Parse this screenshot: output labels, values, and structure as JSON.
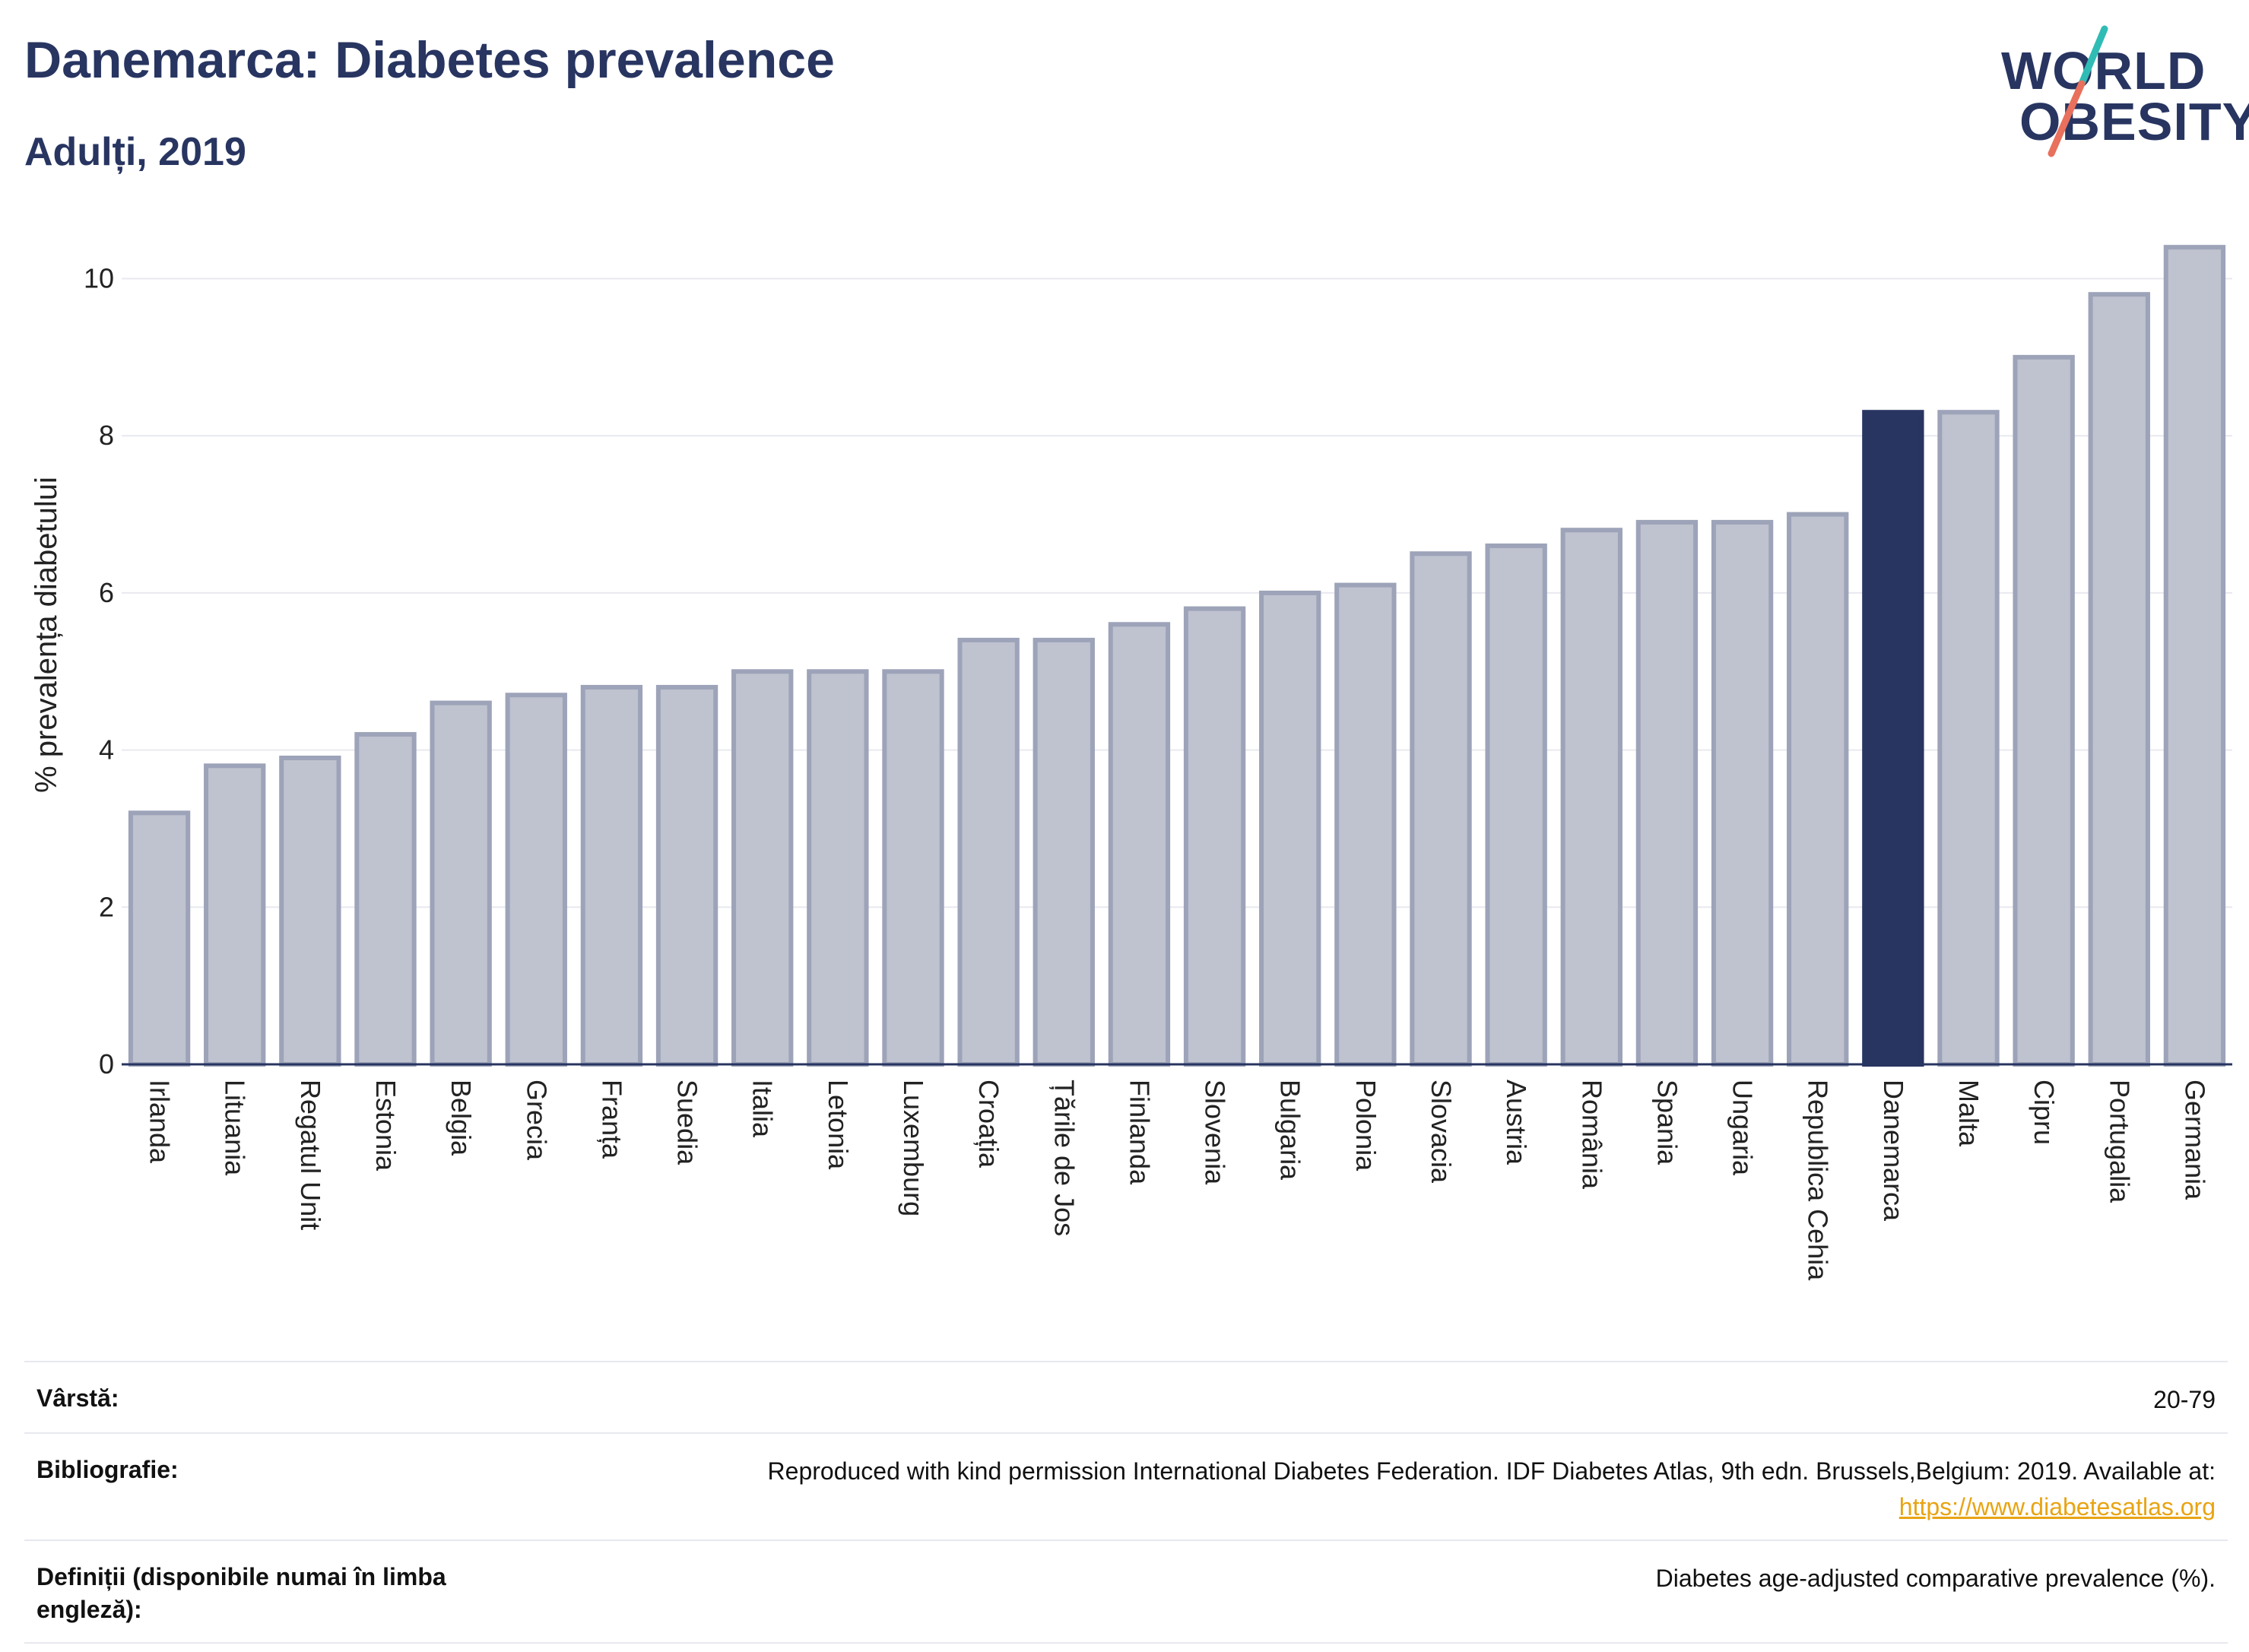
{
  "header": {
    "title": "Danemarca: Diabetes prevalence",
    "subtitle": "Adulți, 2019"
  },
  "logo": {
    "line1": "WORLD",
    "line2": "OBESITY",
    "colors": {
      "text": "#283561",
      "slash_top": "#2fbcb4",
      "slash_bottom": "#e9705c"
    }
  },
  "chart_data": {
    "type": "bar",
    "ylabel": "% prevalența diabetului",
    "xlabel": "",
    "ylim": [
      0,
      10.45
    ],
    "yticks": [
      0,
      2,
      4,
      6,
      8,
      10
    ],
    "grid": true,
    "highlight_category": "Danemarca",
    "colors": {
      "bar": "#bfc2cf",
      "bar_border": "#9da3b8",
      "highlight": "#283561",
      "grid": "#e8e9ef"
    },
    "categories": [
      "Irlanda",
      "Lituania",
      "Regatul Unit",
      "Estonia",
      "Belgia",
      "Grecia",
      "Franța",
      "Suedia",
      "Italia",
      "Letonia",
      "Luxemburg",
      "Croația",
      "Țările de Jos",
      "Finlanda",
      "Slovenia",
      "Bulgaria",
      "Polonia",
      "Slovacia",
      "Austria",
      "România",
      "Spania",
      "Ungaria",
      "Republica Cehia",
      "Danemarca",
      "Malta",
      "Cipru",
      "Portugalia",
      "Germania"
    ],
    "values": [
      3.2,
      3.8,
      3.9,
      4.2,
      4.6,
      4.7,
      4.8,
      4.8,
      5.0,
      5.0,
      5.0,
      5.4,
      5.4,
      5.6,
      5.8,
      6.0,
      6.1,
      6.5,
      6.6,
      6.8,
      6.9,
      6.9,
      7.0,
      8.3,
      8.3,
      9.0,
      9.8,
      10.4
    ]
  },
  "meta": {
    "age": {
      "label": "Vârstă:",
      "value": "20-79"
    },
    "bibliography": {
      "label": "Bibliografie:",
      "value": "Reproduced with kind permission International Diabetes Federation. IDF Diabetes Atlas, 9th edn. Brussels,Belgium: 2019. Available at:",
      "link": "https://www.diabetesatlas.org"
    },
    "definitions": {
      "label": "Definiții (disponibile numai în limba engleză):",
      "value": "Diabetes age-adjusted comparative prevalence (%)."
    }
  }
}
